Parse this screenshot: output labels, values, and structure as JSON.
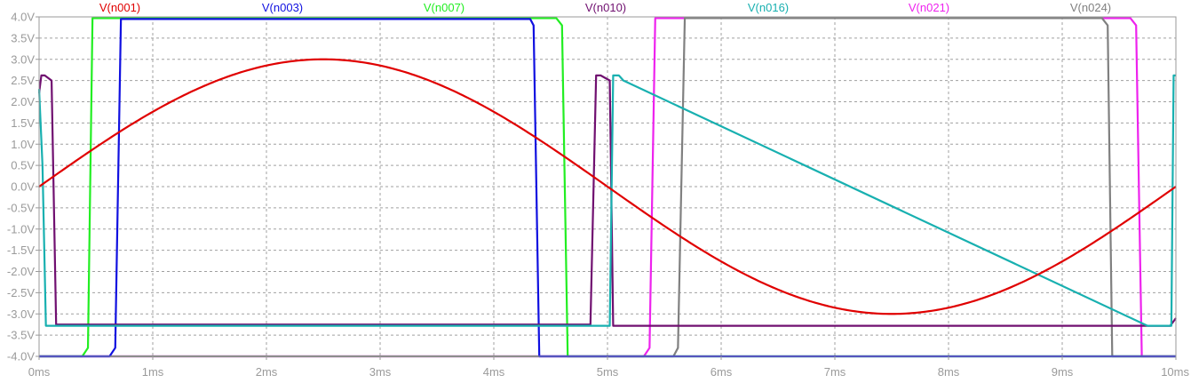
{
  "chart_data": {
    "type": "line",
    "title": "",
    "xlabel": "",
    "ylabel": "",
    "xlim": [
      0,
      10
    ],
    "ylim": [
      -4.0,
      4.0
    ],
    "grid": true,
    "legend_position": "top",
    "x_ticks": [
      {
        "value": 0,
        "label": "0ms"
      },
      {
        "value": 1,
        "label": "1ms"
      },
      {
        "value": 2,
        "label": "2ms"
      },
      {
        "value": 3,
        "label": "3ms"
      },
      {
        "value": 4,
        "label": "4ms"
      },
      {
        "value": 5,
        "label": "5ms"
      },
      {
        "value": 6,
        "label": "6ms"
      },
      {
        "value": 7,
        "label": "7ms"
      },
      {
        "value": 8,
        "label": "8ms"
      },
      {
        "value": 9,
        "label": "9ms"
      },
      {
        "value": 10,
        "label": "10ms"
      }
    ],
    "y_ticks": [
      {
        "value": 4.0,
        "label": "4.0V"
      },
      {
        "value": 3.5,
        "label": "3.5V"
      },
      {
        "value": 3.0,
        "label": "3.0V"
      },
      {
        "value": 2.5,
        "label": "2.5V"
      },
      {
        "value": 2.0,
        "label": "2.0V"
      },
      {
        "value": 1.5,
        "label": "1.5V"
      },
      {
        "value": 1.0,
        "label": "1.0V"
      },
      {
        "value": 0.5,
        "label": "0.5V"
      },
      {
        "value": 0.0,
        "label": "0.0V"
      },
      {
        "value": -0.5,
        "label": "-0.5V"
      },
      {
        "value": -1.0,
        "label": "-1.0V"
      },
      {
        "value": -1.5,
        "label": "-1.5V"
      },
      {
        "value": -2.0,
        "label": "-2.0V"
      },
      {
        "value": -2.5,
        "label": "-2.5V"
      },
      {
        "value": -3.0,
        "label": "-3.0V"
      },
      {
        "value": -3.5,
        "label": "-3.5V"
      },
      {
        "value": -4.0,
        "label": "-4.0V"
      }
    ],
    "series": [
      {
        "name": "V(n001)",
        "color": "#e00000",
        "shape": "sine",
        "amplitude": 3.0,
        "period": 10
      },
      {
        "name": "V(n003)",
        "color": "#1010e0",
        "x": [
          0,
          0.62,
          0.67,
          0.72,
          4.32,
          4.35,
          4.4,
          10
        ],
        "y": [
          -4.0,
          -4.0,
          -3.8,
          3.95,
          3.95,
          3.8,
          -4.0,
          -4.0
        ]
      },
      {
        "name": "V(n007)",
        "color": "#22ee22",
        "x": [
          0,
          0.38,
          0.43,
          0.47,
          4.55,
          4.6,
          4.65,
          10
        ],
        "y": [
          -4.0,
          -4.0,
          -3.8,
          3.97,
          3.97,
          3.8,
          -4.0,
          -4.0
        ]
      },
      {
        "name": "V(n010)",
        "color": "#701070",
        "x": [
          0,
          0.02,
          0.05,
          0.11,
          0.15,
          4.85,
          4.9,
          4.94,
          5.02,
          5.05,
          10
        ],
        "y": [
          2.2,
          2.62,
          2.62,
          2.5,
          -3.25,
          -3.25,
          2.62,
          2.62,
          2.5,
          -3.28,
          -3.28
        ]
      },
      {
        "name": "V(n016)",
        "color": "#18b0b0",
        "x": [
          0,
          0.03,
          0.06,
          5.02,
          5.05,
          5.1,
          5.14,
          10
        ],
        "y": [
          2.3,
          0.5,
          -3.28,
          -3.28,
          2.62,
          2.62,
          2.5,
          -3.28
        ]
      },
      {
        "name": "V(n021)",
        "color": "#ee22ee",
        "x": [
          0,
          5.32,
          5.37,
          5.42,
          9.6,
          9.65,
          9.7,
          10
        ],
        "y": [
          -4.0,
          -4.0,
          -3.8,
          3.97,
          3.97,
          3.8,
          -4.0,
          -4.0
        ]
      },
      {
        "name": "V(n024)",
        "color": "#808080",
        "x": [
          0,
          5.58,
          5.62,
          5.68,
          9.35,
          9.4,
          9.44,
          10
        ],
        "y": [
          -4.0,
          -4.0,
          -3.8,
          3.97,
          3.97,
          3.8,
          -4.0,
          -4.0
        ]
      }
    ],
    "tail_segments": [
      {
        "series": "V(n010)",
        "x": [
          9.75,
          9.95,
          10
        ],
        "y": [
          -3.28,
          -3.28,
          -3.1
        ]
      },
      {
        "series": "V(n016)",
        "x": [
          9.75,
          9.96,
          9.98,
          10
        ],
        "y": [
          -3.28,
          -3.28,
          2.62,
          2.62
        ]
      }
    ]
  }
}
